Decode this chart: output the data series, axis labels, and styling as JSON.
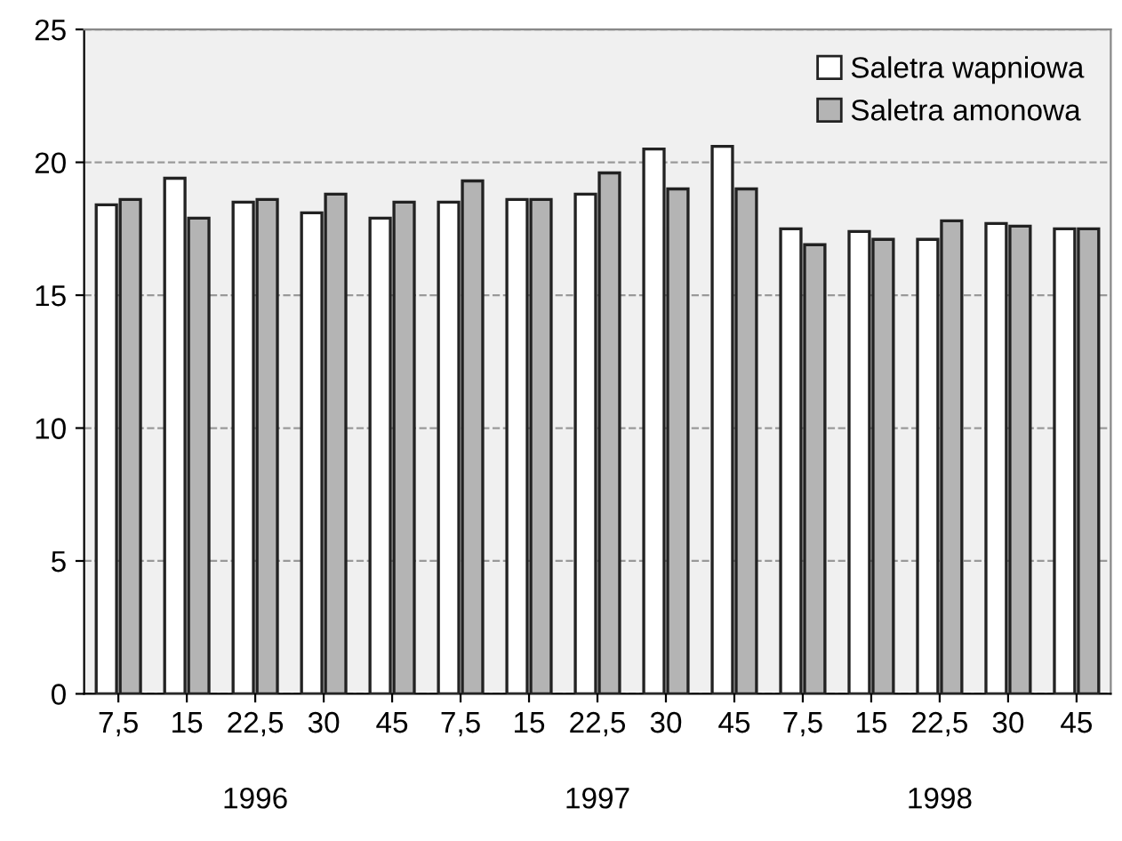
{
  "chart_data": {
    "type": "bar",
    "categories": [
      "7,5",
      "15",
      "22,5",
      "30",
      "45",
      "7,5",
      "15",
      "22,5",
      "30",
      "45",
      "7,5",
      "15",
      "22,5",
      "30",
      "45"
    ],
    "series": [
      {
        "name": "Saletra wapniowa",
        "color": "#ffffff",
        "values": [
          18.4,
          19.4,
          18.5,
          18.1,
          17.9,
          18.5,
          18.6,
          18.8,
          20.5,
          20.6,
          17.5,
          17.4,
          17.1,
          17.7,
          17.5
        ]
      },
      {
        "name": "Saletra amonowa",
        "color": "#b4b4b4",
        "values": [
          18.6,
          17.9,
          18.6,
          18.8,
          18.5,
          19.3,
          18.6,
          19.6,
          19.0,
          19.0,
          16.9,
          17.1,
          17.8,
          17.6,
          17.5
        ]
      }
    ],
    "ylim": [
      0,
      25
    ],
    "yticks": [
      0,
      5,
      10,
      15,
      20,
      25
    ],
    "grid": "y",
    "legend": "top right",
    "annotations": [
      "1996",
      "1997",
      "1998"
    ]
  }
}
